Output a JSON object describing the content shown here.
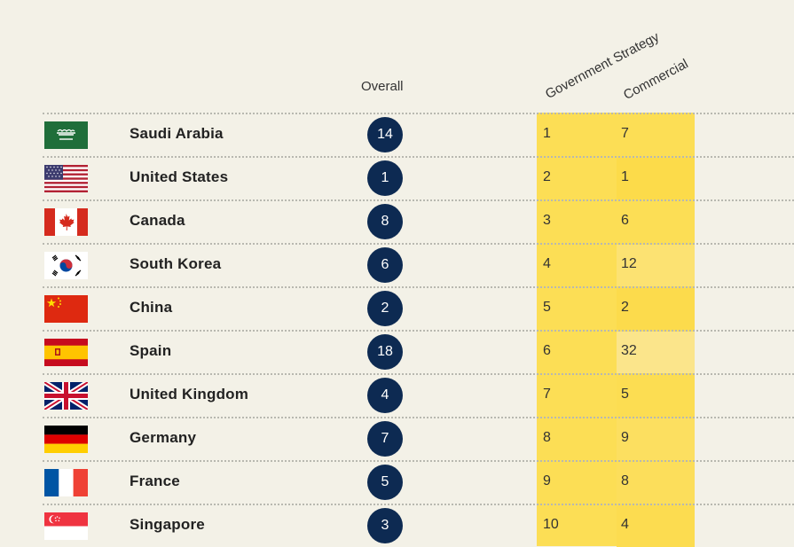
{
  "headers": {
    "overall": "Overall",
    "government_strategy": "Government Strategy",
    "commercial": "Commercial"
  },
  "colors": {
    "background": "#f3f1e7",
    "badge": "#0d2a52",
    "highlight": "#fcde55"
  },
  "rows": [
    {
      "flag_icon": "saudi-arabia-flag-icon",
      "country": "Saudi Arabia",
      "overall": "14",
      "government_strategy": "1",
      "commercial": "7",
      "commercial_shade": "#fcde55"
    },
    {
      "flag_icon": "united-states-flag-icon",
      "country": "United States",
      "overall": "1",
      "government_strategy": "2",
      "commercial": "1",
      "commercial_shade": "#fcdb4a"
    },
    {
      "flag_icon": "canada-flag-icon",
      "country": "Canada",
      "overall": "8",
      "government_strategy": "3",
      "commercial": "6",
      "commercial_shade": "#fcde55"
    },
    {
      "flag_icon": "south-korea-flag-icon",
      "country": "South Korea",
      "overall": "6",
      "government_strategy": "4",
      "commercial": "12",
      "commercial_shade": "#fce272"
    },
    {
      "flag_icon": "china-flag-icon",
      "country": "China",
      "overall": "2",
      "government_strategy": "5",
      "commercial": "2",
      "commercial_shade": "#fcdb4c"
    },
    {
      "flag_icon": "spain-flag-icon",
      "country": "Spain",
      "overall": "18",
      "government_strategy": "6",
      "commercial": "32",
      "commercial_shade": "#fbe58b"
    },
    {
      "flag_icon": "united-kingdom-flag-icon",
      "country": "United Kingdom",
      "overall": "4",
      "government_strategy": "7",
      "commercial": "5",
      "commercial_shade": "#fcdd52"
    },
    {
      "flag_icon": "germany-flag-icon",
      "country": "Germany",
      "overall": "7",
      "government_strategy": "8",
      "commercial": "9",
      "commercial_shade": "#fcdf60"
    },
    {
      "flag_icon": "france-flag-icon",
      "country": "France",
      "overall": "5",
      "government_strategy": "9",
      "commercial": "8",
      "commercial_shade": "#fcde5b"
    },
    {
      "flag_icon": "singapore-flag-icon",
      "country": "Singapore",
      "overall": "3",
      "government_strategy": "10",
      "commercial": "4",
      "commercial_shade": "#fcdc50"
    }
  ]
}
